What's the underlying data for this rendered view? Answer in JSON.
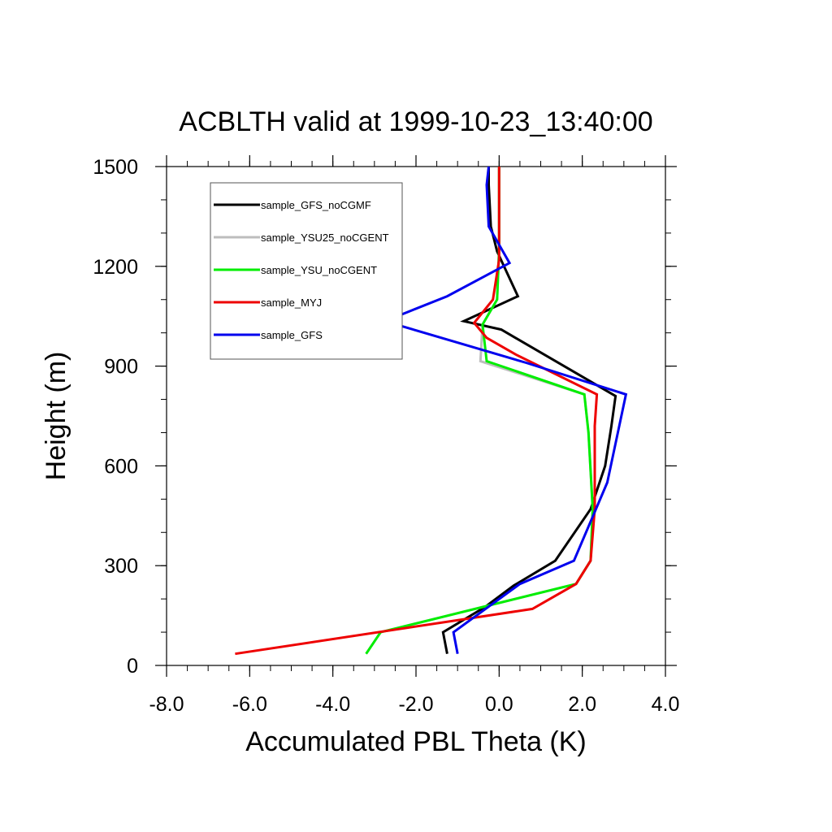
{
  "chart_data": {
    "type": "line",
    "title": "ACBLTH valid at 1999-10-23_13:40:00",
    "xlabel": "Accumulated PBL Theta (K)",
    "ylabel": "Height (m)",
    "xlim": [
      -8.0,
      4.0
    ],
    "ylim": [
      0,
      1500
    ],
    "xticks": [
      -8.0,
      -6.0,
      -4.0,
      -2.0,
      0.0,
      2.0,
      4.0
    ],
    "xtick_labels": [
      "-8.0",
      "-6.0",
      "-4.0",
      "-2.0",
      "0.0",
      "2.0",
      "4.0"
    ],
    "yticks": [
      0,
      300,
      600,
      900,
      1200,
      1500
    ],
    "ytick_labels": [
      "0",
      "300",
      "600",
      "900",
      "1200",
      "1500"
    ],
    "grid": false,
    "legend_position": "top-left",
    "series": [
      {
        "name": "sample_GFS_noCGMF",
        "color": "#000000",
        "points": [
          [
            -1.25,
            35
          ],
          [
            -1.35,
            100
          ],
          [
            -0.35,
            175
          ],
          [
            0.35,
            240
          ],
          [
            1.35,
            315
          ],
          [
            2.2,
            470
          ],
          [
            2.55,
            600
          ],
          [
            2.7,
            720
          ],
          [
            2.8,
            810
          ],
          [
            0.05,
            1010
          ],
          [
            -0.85,
            1035
          ],
          [
            0.45,
            1110
          ],
          [
            -0.05,
            1245
          ],
          [
            -0.2,
            1320
          ],
          [
            -0.25,
            1445
          ],
          [
            -0.25,
            1500
          ]
        ]
      },
      {
        "name": "sample_YSU25_noCGENT",
        "color": "#bdbdbd",
        "points": [
          [
            -3.2,
            35
          ],
          [
            -2.85,
            100
          ],
          [
            1.85,
            245
          ],
          [
            2.2,
            315
          ],
          [
            2.25,
            470
          ],
          [
            2.15,
            700
          ],
          [
            2.05,
            815
          ],
          [
            -0.45,
            915
          ],
          [
            -0.4,
            1025
          ],
          [
            -0.05,
            1100
          ],
          [
            0.0,
            1250
          ],
          [
            0.0,
            1500
          ]
        ]
      },
      {
        "name": "sample_YSU_noCGENT",
        "color": "#00ee00",
        "points": [
          [
            -3.2,
            35
          ],
          [
            -2.85,
            100
          ],
          [
            1.85,
            245
          ],
          [
            2.2,
            315
          ],
          [
            2.25,
            470
          ],
          [
            2.15,
            700
          ],
          [
            2.05,
            815
          ],
          [
            -0.3,
            915
          ],
          [
            -0.4,
            1025
          ],
          [
            -0.05,
            1100
          ],
          [
            0.0,
            1250
          ],
          [
            0.0,
            1500
          ]
        ]
      },
      {
        "name": "sample_MYJ",
        "color": "#ee0000",
        "points": [
          [
            -6.35,
            35
          ],
          [
            0.8,
            170
          ],
          [
            1.85,
            245
          ],
          [
            2.2,
            315
          ],
          [
            2.3,
            470
          ],
          [
            2.3,
            720
          ],
          [
            2.35,
            815
          ],
          [
            0.4,
            935
          ],
          [
            -0.3,
            985
          ],
          [
            -0.6,
            1030
          ],
          [
            -0.15,
            1100
          ],
          [
            0.0,
            1220
          ],
          [
            0.0,
            1500
          ]
        ]
      },
      {
        "name": "sample_GFS",
        "color": "#0000ee",
        "points": [
          [
            -1.0,
            35
          ],
          [
            -1.1,
            100
          ],
          [
            0.5,
            245
          ],
          [
            1.8,
            315
          ],
          [
            2.6,
            550
          ],
          [
            3.05,
            815
          ],
          [
            0.65,
            910
          ],
          [
            -2.75,
            1035
          ],
          [
            -1.25,
            1110
          ],
          [
            0.25,
            1210
          ],
          [
            -0.25,
            1320
          ],
          [
            -0.3,
            1445
          ],
          [
            -0.25,
            1500
          ]
        ]
      }
    ]
  }
}
